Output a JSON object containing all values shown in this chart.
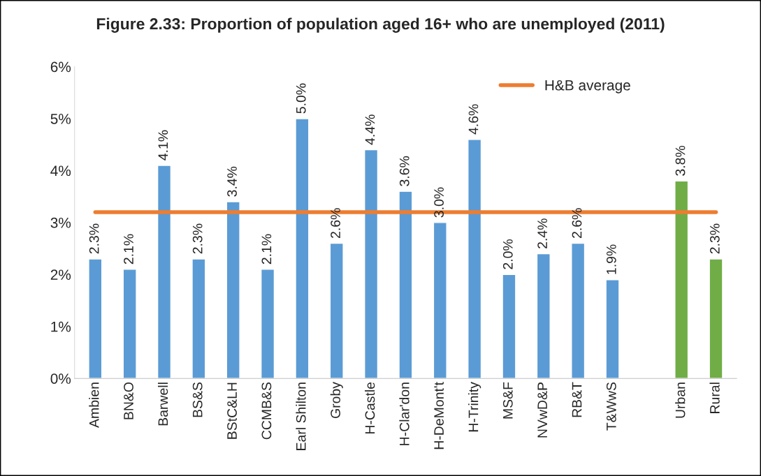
{
  "chart_data": {
    "type": "bar",
    "title": "Figure 2.33: Proportion of population aged 16+ who are unemployed (2011)",
    "categories": [
      "Ambien",
      "BN&O",
      "Barwell",
      "BS&S",
      "BStC&LH",
      "CCMB&S",
      "Earl Shilton",
      "Groby",
      "H-Castle",
      "H-Clar'don",
      "H-DeMont't",
      "H-Trinity",
      "MS&F",
      "NVwD&P",
      "RB&T",
      "T&WwS",
      null,
      "Urban",
      "Rural"
    ],
    "series": [
      {
        "colors": [
          "#5b9bd5",
          "#5b9bd5",
          "#5b9bd5",
          "#5b9bd5",
          "#5b9bd5",
          "#5b9bd5",
          "#5b9bd5",
          "#5b9bd5",
          "#5b9bd5",
          "#5b9bd5",
          "#5b9bd5",
          "#5b9bd5",
          "#5b9bd5",
          "#5b9bd5",
          "#5b9bd5",
          "#5b9bd5",
          "#5b9bd5",
          "#70ad47",
          "#70ad47"
        ],
        "values": [
          2.3,
          2.1,
          4.1,
          2.3,
          3.4,
          2.1,
          5.0,
          2.6,
          4.4,
          3.6,
          3.0,
          4.6,
          2.0,
          2.4,
          2.6,
          1.9,
          null,
          3.8,
          2.3
        ],
        "value_labels": [
          "2.3%",
          "2.1%",
          "4.1%",
          "2.3%",
          "3.4%",
          "2.1%",
          "5.0%",
          "2.6%",
          "4.4%",
          "3.6%",
          "3.0%",
          "4.6%",
          "2.0%",
          "2.4%",
          "2.6%",
          "1.9%",
          null,
          "3.8%",
          "2.3%"
        ]
      },
      {
        "type": "line",
        "name": "H&B average",
        "color": "#ed7d31",
        "values": [
          3.2,
          3.2,
          3.2,
          3.2,
          3.2,
          3.2,
          3.2,
          3.2,
          3.2,
          3.2,
          3.2,
          3.2,
          3.2,
          3.2,
          3.2,
          3.2,
          3.2,
          3.2,
          3.2
        ]
      }
    ],
    "ylim": [
      0,
      6
    ],
    "yticks": [
      {
        "value": 0,
        "label": "0%"
      },
      {
        "value": 1,
        "label": "1%"
      },
      {
        "value": 2,
        "label": "2%"
      },
      {
        "value": 3,
        "label": "3%"
      },
      {
        "value": 4,
        "label": "4%"
      },
      {
        "value": 5,
        "label": "5%"
      },
      {
        "value": 6,
        "label": "6%"
      }
    ],
    "grid": false,
    "legend": "top right"
  }
}
